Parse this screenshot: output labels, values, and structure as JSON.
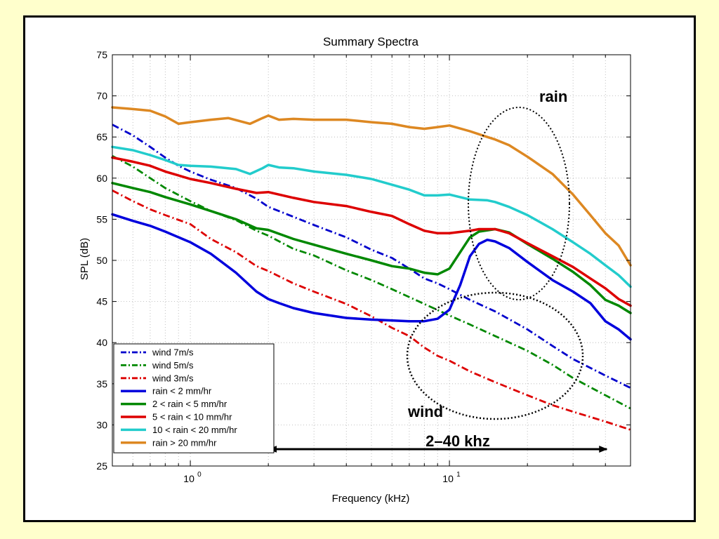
{
  "slide": {
    "background": "#ffffcc"
  },
  "chart_data": {
    "type": "line",
    "title": "Summary Spectra",
    "xlabel": "Frequency (kHz)",
    "ylabel": "SPL (dB)",
    "x_scale": "log",
    "xlim": [
      0.5,
      50
    ],
    "ylim": [
      25,
      75
    ],
    "y_ticks": [
      25,
      30,
      35,
      40,
      45,
      50,
      55,
      60,
      65,
      70,
      75
    ],
    "x_ticks": [
      {
        "value": 1,
        "label": "10",
        "exp": "0"
      },
      {
        "value": 10,
        "label": "10",
        "exp": "1"
      }
    ],
    "grid": true,
    "legend_position": "bottom-left",
    "series": [
      {
        "name": "wind 7m/s",
        "color": "#0000cc",
        "style": "dashdot",
        "points": [
          [
            0.5,
            66.5
          ],
          [
            0.6,
            65.2
          ],
          [
            0.7,
            63.8
          ],
          [
            0.8,
            62.5
          ],
          [
            0.9,
            61.5
          ],
          [
            1.0,
            60.8
          ],
          [
            1.2,
            59.8
          ],
          [
            1.5,
            58.8
          ],
          [
            1.8,
            57.5
          ],
          [
            2.0,
            56.5
          ],
          [
            2.5,
            55.3
          ],
          [
            3.0,
            54.3
          ],
          [
            4.0,
            52.8
          ],
          [
            5.0,
            51.3
          ],
          [
            6.0,
            50.3
          ],
          [
            7.0,
            49.0
          ],
          [
            8.0,
            47.8
          ],
          [
            9.0,
            47.2
          ],
          [
            10.0,
            46.5
          ],
          [
            12.0,
            45.2
          ],
          [
            15.0,
            43.8
          ],
          [
            20.0,
            41.6
          ],
          [
            25.0,
            39.6
          ],
          [
            30.0,
            38.0
          ],
          [
            40.0,
            36.0
          ],
          [
            50.0,
            34.5
          ]
        ]
      },
      {
        "name": "wind 5m/s",
        "color": "#008800",
        "style": "dashdot",
        "points": [
          [
            0.5,
            62.7
          ],
          [
            0.6,
            61.4
          ],
          [
            0.7,
            60.0
          ],
          [
            0.8,
            58.8
          ],
          [
            1.0,
            57.2
          ],
          [
            1.2,
            56.0
          ],
          [
            1.5,
            54.9
          ],
          [
            1.8,
            53.6
          ],
          [
            2.0,
            53.0
          ],
          [
            2.5,
            51.4
          ],
          [
            3.0,
            50.6
          ],
          [
            4.0,
            48.8
          ],
          [
            5.0,
            47.6
          ],
          [
            6.0,
            46.5
          ],
          [
            8.0,
            44.7
          ],
          [
            10.0,
            43.3
          ],
          [
            12.0,
            42.2
          ],
          [
            15.0,
            40.8
          ],
          [
            20.0,
            39.0
          ],
          [
            25.0,
            37.3
          ],
          [
            30.0,
            35.7
          ],
          [
            40.0,
            33.6
          ],
          [
            50.0,
            32.0
          ]
        ]
      },
      {
        "name": "wind 3m/s",
        "color": "#dd0000",
        "style": "dashdot",
        "points": [
          [
            0.5,
            58.5
          ],
          [
            0.6,
            57.2
          ],
          [
            0.7,
            56.2
          ],
          [
            0.8,
            55.5
          ],
          [
            1.0,
            54.4
          ],
          [
            1.2,
            52.6
          ],
          [
            1.5,
            51.0
          ],
          [
            1.8,
            49.3
          ],
          [
            2.0,
            48.7
          ],
          [
            2.5,
            47.2
          ],
          [
            3.0,
            46.2
          ],
          [
            4.0,
            44.7
          ],
          [
            5.0,
            43.2
          ],
          [
            6.0,
            41.8
          ],
          [
            7.0,
            40.8
          ],
          [
            8.0,
            39.4
          ],
          [
            9.0,
            38.4
          ],
          [
            10.0,
            37.8
          ],
          [
            12.0,
            36.5
          ],
          [
            15.0,
            35.2
          ],
          [
            20.0,
            33.6
          ],
          [
            25.0,
            32.4
          ],
          [
            30.0,
            31.6
          ],
          [
            40.0,
            30.4
          ],
          [
            50.0,
            29.4
          ]
        ]
      },
      {
        "name": "rain < 2 mm/hr",
        "color": "#0000dd",
        "style": "solid",
        "points": [
          [
            0.5,
            55.6
          ],
          [
            0.6,
            54.8
          ],
          [
            0.7,
            54.2
          ],
          [
            0.8,
            53.5
          ],
          [
            1.0,
            52.2
          ],
          [
            1.2,
            50.8
          ],
          [
            1.5,
            48.5
          ],
          [
            1.8,
            46.2
          ],
          [
            2.0,
            45.3
          ],
          [
            2.2,
            44.8
          ],
          [
            2.5,
            44.2
          ],
          [
            3.0,
            43.6
          ],
          [
            4.0,
            43.0
          ],
          [
            5.0,
            42.8
          ],
          [
            6.0,
            42.7
          ],
          [
            7.0,
            42.6
          ],
          [
            8.0,
            42.6
          ],
          [
            9.0,
            42.9
          ],
          [
            10.0,
            44.0
          ],
          [
            11.0,
            47.0
          ],
          [
            12.0,
            50.5
          ],
          [
            13.0,
            52.0
          ],
          [
            14.0,
            52.5
          ],
          [
            15.0,
            52.3
          ],
          [
            17.0,
            51.5
          ],
          [
            20.0,
            49.8
          ],
          [
            25.0,
            47.6
          ],
          [
            30.0,
            46.2
          ],
          [
            35.0,
            44.8
          ],
          [
            40.0,
            42.6
          ],
          [
            45.0,
            41.6
          ],
          [
            50.0,
            40.4
          ]
        ]
      },
      {
        "name": "2 < rain < 5 mm/hr",
        "color": "#008800",
        "style": "solid",
        "points": [
          [
            0.5,
            59.4
          ],
          [
            0.6,
            58.8
          ],
          [
            0.7,
            58.3
          ],
          [
            0.8,
            57.7
          ],
          [
            1.0,
            56.8
          ],
          [
            1.2,
            56.0
          ],
          [
            1.5,
            55.0
          ],
          [
            1.8,
            53.9
          ],
          [
            2.0,
            53.7
          ],
          [
            2.5,
            52.6
          ],
          [
            3.0,
            51.9
          ],
          [
            4.0,
            50.8
          ],
          [
            5.0,
            50.0
          ],
          [
            6.0,
            49.3
          ],
          [
            7.0,
            49.0
          ],
          [
            8.0,
            48.5
          ],
          [
            9.0,
            48.3
          ],
          [
            10.0,
            49.0
          ],
          [
            11.0,
            51.0
          ],
          [
            12.0,
            52.8
          ],
          [
            13.0,
            53.5
          ],
          [
            15.0,
            53.8
          ],
          [
            17.0,
            53.4
          ],
          [
            20.0,
            52.0
          ],
          [
            25.0,
            50.2
          ],
          [
            30.0,
            48.6
          ],
          [
            35.0,
            47.0
          ],
          [
            40.0,
            45.2
          ],
          [
            45.0,
            44.5
          ],
          [
            50.0,
            43.6
          ]
        ]
      },
      {
        "name": "5 < rain < 10 mm/hr",
        "color": "#dd0000",
        "style": "solid",
        "points": [
          [
            0.5,
            62.5
          ],
          [
            0.6,
            62.0
          ],
          [
            0.7,
            61.5
          ],
          [
            0.8,
            60.8
          ],
          [
            1.0,
            59.9
          ],
          [
            1.2,
            59.4
          ],
          [
            1.5,
            58.7
          ],
          [
            1.8,
            58.2
          ],
          [
            2.0,
            58.3
          ],
          [
            2.5,
            57.6
          ],
          [
            3.0,
            57.1
          ],
          [
            4.0,
            56.6
          ],
          [
            5.0,
            55.9
          ],
          [
            6.0,
            55.4
          ],
          [
            7.0,
            54.4
          ],
          [
            8.0,
            53.6
          ],
          [
            9.0,
            53.3
          ],
          [
            10.0,
            53.3
          ],
          [
            12.0,
            53.6
          ],
          [
            13.0,
            53.8
          ],
          [
            15.0,
            53.8
          ],
          [
            17.0,
            53.3
          ],
          [
            20.0,
            52.1
          ],
          [
            25.0,
            50.5
          ],
          [
            30.0,
            49.2
          ],
          [
            35.0,
            47.8
          ],
          [
            40.0,
            46.6
          ],
          [
            45.0,
            45.3
          ],
          [
            50.0,
            44.5
          ]
        ]
      },
      {
        "name": "10 < rain < 20 mm/hr",
        "color": "#22cccc",
        "style": "solid",
        "points": [
          [
            0.5,
            63.8
          ],
          [
            0.6,
            63.4
          ],
          [
            0.7,
            62.8
          ],
          [
            0.8,
            62.2
          ],
          [
            0.9,
            61.6
          ],
          [
            1.0,
            61.5
          ],
          [
            1.2,
            61.4
          ],
          [
            1.5,
            61.1
          ],
          [
            1.7,
            60.5
          ],
          [
            1.9,
            61.2
          ],
          [
            2.0,
            61.6
          ],
          [
            2.2,
            61.3
          ],
          [
            2.5,
            61.2
          ],
          [
            3.0,
            60.8
          ],
          [
            4.0,
            60.4
          ],
          [
            5.0,
            59.9
          ],
          [
            6.0,
            59.2
          ],
          [
            7.0,
            58.6
          ],
          [
            8.0,
            57.9
          ],
          [
            9.0,
            57.9
          ],
          [
            10.0,
            58.0
          ],
          [
            12.0,
            57.4
          ],
          [
            14.0,
            57.3
          ],
          [
            15.0,
            57.1
          ],
          [
            17.0,
            56.5
          ],
          [
            20.0,
            55.5
          ],
          [
            25.0,
            53.8
          ],
          [
            30.0,
            52.2
          ],
          [
            35.0,
            50.8
          ],
          [
            40.0,
            49.4
          ],
          [
            45.0,
            48.2
          ],
          [
            50.0,
            46.8
          ]
        ]
      },
      {
        "name": "rain > 20 mm/hr",
        "color": "#dd8822",
        "style": "solid",
        "points": [
          [
            0.5,
            68.6
          ],
          [
            0.6,
            68.4
          ],
          [
            0.7,
            68.2
          ],
          [
            0.8,
            67.5
          ],
          [
            0.9,
            66.6
          ],
          [
            1.0,
            66.8
          ],
          [
            1.2,
            67.1
          ],
          [
            1.4,
            67.3
          ],
          [
            1.7,
            66.6
          ],
          [
            1.9,
            67.3
          ],
          [
            2.0,
            67.6
          ],
          [
            2.2,
            67.1
          ],
          [
            2.5,
            67.2
          ],
          [
            3.0,
            67.1
          ],
          [
            4.0,
            67.1
          ],
          [
            5.0,
            66.8
          ],
          [
            6.0,
            66.6
          ],
          [
            7.0,
            66.2
          ],
          [
            8.0,
            66.0
          ],
          [
            9.0,
            66.2
          ],
          [
            10.0,
            66.4
          ],
          [
            12.0,
            65.7
          ],
          [
            14.0,
            65.0
          ],
          [
            15.0,
            64.7
          ],
          [
            17.0,
            64.0
          ],
          [
            20.0,
            62.6
          ],
          [
            25.0,
            60.5
          ],
          [
            30.0,
            58.0
          ],
          [
            35.0,
            55.5
          ],
          [
            40.0,
            53.3
          ],
          [
            45.0,
            51.8
          ],
          [
            50.0,
            49.4
          ]
        ]
      }
    ],
    "annotations": [
      {
        "text": "rain",
        "color": "#000000"
      },
      {
        "text": "wind",
        "color": "#000000"
      },
      {
        "text": "2–40 khz",
        "arrow_from": 2,
        "arrow_to": 40,
        "color": "#000000"
      }
    ]
  }
}
